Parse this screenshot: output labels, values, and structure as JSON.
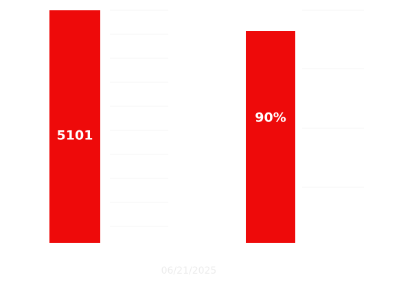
{
  "panels": [
    {
      "label": "5101"
    },
    {
      "label": "90%"
    }
  ],
  "date": "06/21/2025"
}
